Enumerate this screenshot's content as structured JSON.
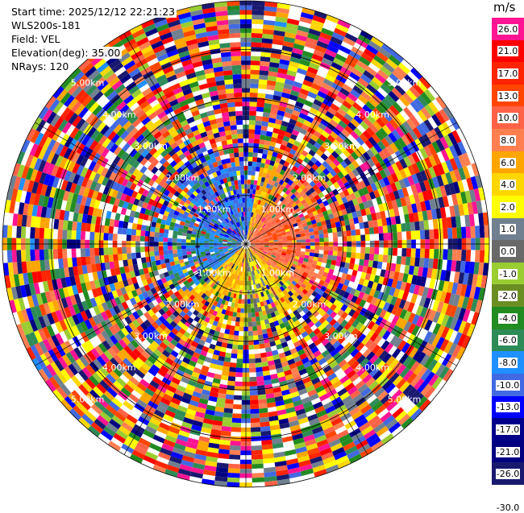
{
  "header": {
    "start_time": "Start time: 2025/12/12 22:21:23",
    "instrument": "WLS200s-181",
    "field": "Field: VEL",
    "elevation": "Elevation(deg): 35.00",
    "nrays": "NRays: 120"
  },
  "colorbar": {
    "unit": "m/s",
    "ticks": [
      "26.0",
      "21.0",
      "17.0",
      "13.0",
      "10.0",
      "8.0",
      "6.0",
      "4.0",
      "2.0",
      "1.0",
      "0.0",
      "-1.0",
      "-2.0",
      "-4.0",
      "-6.0",
      "-8.0",
      "-10.0",
      "-13.0",
      "-17.0",
      "-21.0",
      "-26.0",
      "-30.0"
    ],
    "colors": [
      "#ff1493",
      "#ff0000",
      "#ff2400",
      "#ff4500",
      "#ff6347",
      "#ff7f50",
      "#ffa500",
      "#ffd700",
      "#ffff00",
      "#708090",
      "#696969",
      "#9acd32",
      "#6b8e23",
      "#228b22",
      "#2e8b57",
      "#1e90ff",
      "#4169e1",
      "#0000ff",
      "#00008b",
      "#000080",
      "#191970"
    ]
  },
  "chart_data": {
    "type": "heatmap",
    "title": "",
    "range_ring_labels_km": [
      "1.00km",
      "2.00km",
      "3.00km",
      "4.00km",
      "5.00km"
    ],
    "ring_label_directions": [
      "NW",
      "NE",
      "SW",
      "SE"
    ],
    "grid": true,
    "n_rays": 120,
    "elevation_deg": 35.0,
    "field": "VEL",
    "units": "m/s",
    "colorscale_min": -30.0,
    "colorscale_max": 26.0,
    "pattern_description": [
      {
        "azimuth_sector": "NW quadrant near center",
        "velocity": -17.0
      },
      {
        "azimuth_sector": "NE quadrant near center",
        "velocity": 6.0
      },
      {
        "azimuth_sector": "SE quadrant near center",
        "velocity": 10.0
      },
      {
        "azimuth_sector": "S sector near center",
        "velocity": 4.0
      },
      {
        "azimuth_sector": "SW quadrant near center",
        "velocity": -10.0
      },
      {
        "azimuth_sector": "outer ranges (noise)",
        "velocity": "random"
      }
    ]
  }
}
